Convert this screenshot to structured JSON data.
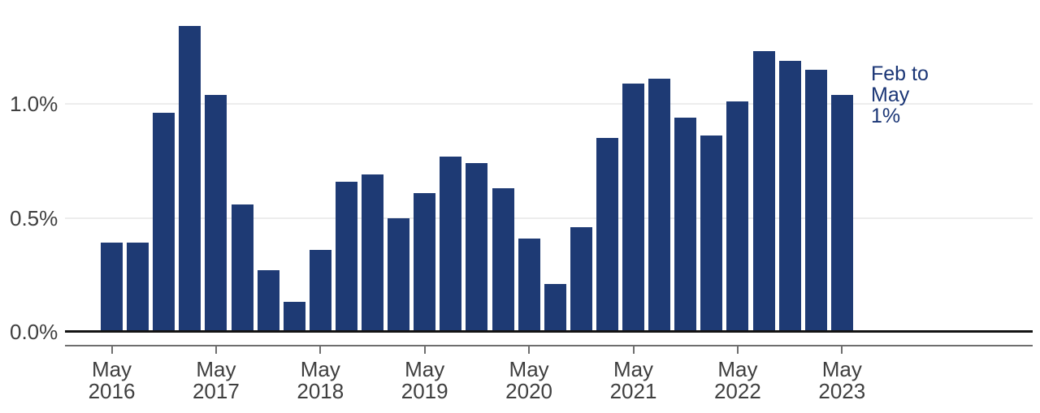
{
  "chart_data": {
    "type": "bar",
    "title": "",
    "xlabel": "",
    "ylabel": "",
    "unit": "%",
    "categories": [
      "May 2016",
      "Aug 2016",
      "Nov 2016",
      "Feb 2017",
      "May 2017",
      "Aug 2017",
      "Nov 2017",
      "Feb 2018",
      "May 2018",
      "Aug 2018",
      "Nov 2018",
      "Feb 2019",
      "May 2019",
      "Aug 2019",
      "Nov 2019",
      "Feb 2020",
      "May 2020",
      "Aug 2020",
      "Nov 2020",
      "Feb 2021",
      "May 2021",
      "Aug 2021",
      "Nov 2021",
      "Feb 2022",
      "May 2022",
      "Aug 2022",
      "Nov 2022",
      "Feb 2023",
      "May 2023"
    ],
    "values": [
      0.39,
      0.39,
      0.96,
      1.34,
      1.04,
      0.56,
      0.27,
      0.13,
      0.36,
      0.66,
      0.69,
      0.5,
      0.61,
      0.77,
      0.74,
      0.63,
      0.41,
      0.21,
      0.46,
      0.85,
      1.09,
      1.11,
      0.94,
      0.86,
      1.01,
      1.23,
      1.19,
      1.15,
      1.04
    ],
    "ylim": [
      0,
      1.4
    ],
    "y_tick_values": [
      0,
      0.5,
      1.0
    ],
    "y_tick_labels": [
      "0.0%",
      "0.5%",
      "1.0%"
    ],
    "x_tick_every": 4,
    "x_tick_labels": [
      [
        "May",
        "2016"
      ],
      [
        "May",
        "2017"
      ],
      [
        "May",
        "2018"
      ],
      [
        "May",
        "2019"
      ],
      [
        "May",
        "2020"
      ],
      [
        "May",
        "2021"
      ],
      [
        "May",
        "2022"
      ],
      [
        "May",
        "2023"
      ]
    ],
    "annotation_lines": [
      "Feb to",
      "May",
      "1%"
    ],
    "legend": "none",
    "grid": "horizontal",
    "colors": {
      "bar": "#1e3a74",
      "annotation_text": "#1b3676",
      "axis_text": "#3f3f3f",
      "gridline": "#ededed",
      "zero_line": "#141414",
      "axis_line": "#6e6e6e"
    }
  }
}
